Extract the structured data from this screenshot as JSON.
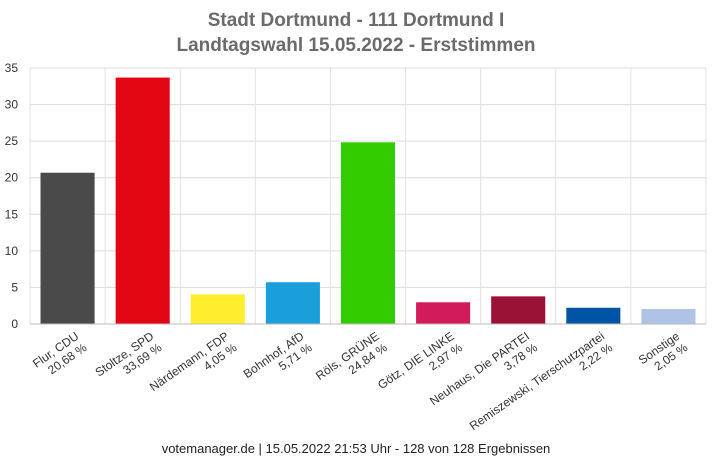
{
  "chart_data": {
    "type": "bar",
    "title": "Stadt Dortmund - 111 Dortmund I",
    "subtitle": "Landtagswahl 15.05.2022  - Erststimmen",
    "categories": [
      "Flur, CDU",
      "Stoltze, SPD",
      "Närdemann, FDP",
      "Bohnhof, AfD",
      "Röls, GRÜNE",
      "Götz, DIE LINKE",
      "Neuhaus, Die PARTEI",
      "Remiszewski, Tierschutzpartei",
      "Sonstige"
    ],
    "values": [
      20.68,
      33.69,
      4.05,
      5.71,
      24.84,
      2.97,
      3.78,
      2.22,
      2.05
    ],
    "value_labels": [
      "20,68 %",
      "33,69 %",
      "4,05 %",
      "5,71 %",
      "24,84 %",
      "2,97 %",
      "3,78 %",
      "2,22 %",
      "2,05 %"
    ],
    "colors": [
      "#4a4a4a",
      "#e30613",
      "#ffed2e",
      "#1a9fdb",
      "#33cc00",
      "#d21b5a",
      "#9b1237",
      "#0054a6",
      "#aec3e6"
    ],
    "ylim": [
      0,
      35
    ],
    "yticks": [
      0,
      5,
      10,
      15,
      20,
      25,
      30,
      35
    ],
    "grid": true,
    "xlabel": "",
    "ylabel": ""
  },
  "footer": "votemanager.de | 15.05.2022 21:53 Uhr - 128 von 128 Ergebnissen"
}
